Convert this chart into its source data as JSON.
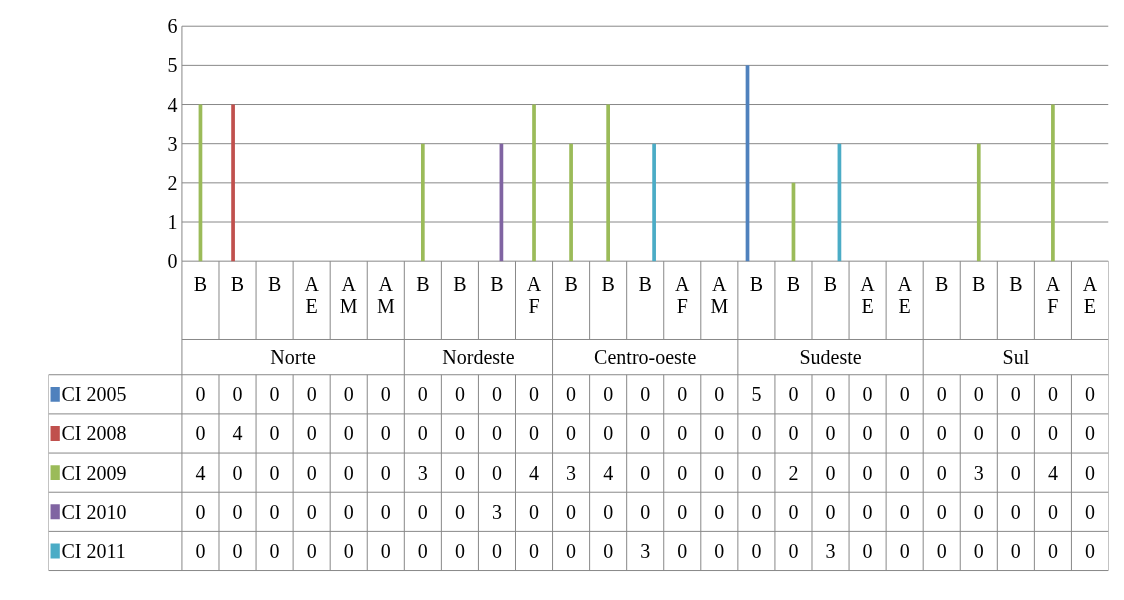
{
  "chart_data": {
    "type": "bar",
    "categories": [
      "B",
      "B",
      "B",
      "AE",
      "AM",
      "AM",
      "B",
      "B",
      "B",
      "AF",
      "B",
      "B",
      "B",
      "AF",
      "AM",
      "B",
      "B",
      "B",
      "AE",
      "AE",
      "B",
      "B",
      "B",
      "AF",
      "AE"
    ],
    "annotations": [
      "Norte",
      "Nordeste",
      "Centro-oeste",
      "Sudeste",
      "Sul"
    ],
    "series": [
      {
        "name": "CI 2005",
        "color": "#4f81bd",
        "values": [
          0,
          0,
          0,
          0,
          0,
          0,
          0,
          0,
          0,
          0,
          0,
          0,
          0,
          0,
          0,
          5,
          0,
          0,
          0,
          0,
          0,
          0,
          0,
          0,
          0
        ]
      },
      {
        "name": "CI 2008",
        "color": "#c0504d",
        "values": [
          0,
          4,
          0,
          0,
          0,
          0,
          0,
          0,
          0,
          0,
          0,
          0,
          0,
          0,
          0,
          0,
          0,
          0,
          0,
          0,
          0,
          0,
          0,
          0,
          0
        ]
      },
      {
        "name": "CI 2009",
        "color": "#9bbb59",
        "values": [
          4,
          0,
          0,
          0,
          0,
          0,
          3,
          0,
          0,
          4,
          3,
          4,
          0,
          0,
          0,
          0,
          2,
          0,
          0,
          0,
          0,
          3,
          0,
          4,
          0
        ]
      },
      {
        "name": "CI 2010",
        "color": "#8064a2",
        "values": [
          0,
          0,
          0,
          0,
          0,
          0,
          0,
          0,
          3,
          0,
          0,
          0,
          0,
          0,
          0,
          0,
          0,
          0,
          0,
          0,
          0,
          0,
          0,
          0,
          0
        ]
      },
      {
        "name": "CI 2011",
        "color": "#4bacc6",
        "values": [
          0,
          0,
          0,
          0,
          0,
          0,
          0,
          0,
          0,
          0,
          0,
          0,
          3,
          0,
          0,
          0,
          0,
          3,
          0,
          0,
          0,
          0,
          0,
          0,
          0
        ]
      }
    ],
    "ylim": [
      0,
      6
    ],
    "yticks": [
      0,
      1,
      2,
      3,
      4,
      5,
      6
    ],
    "grid": "y",
    "legend": "bottom left",
    "data_labels": true
  }
}
